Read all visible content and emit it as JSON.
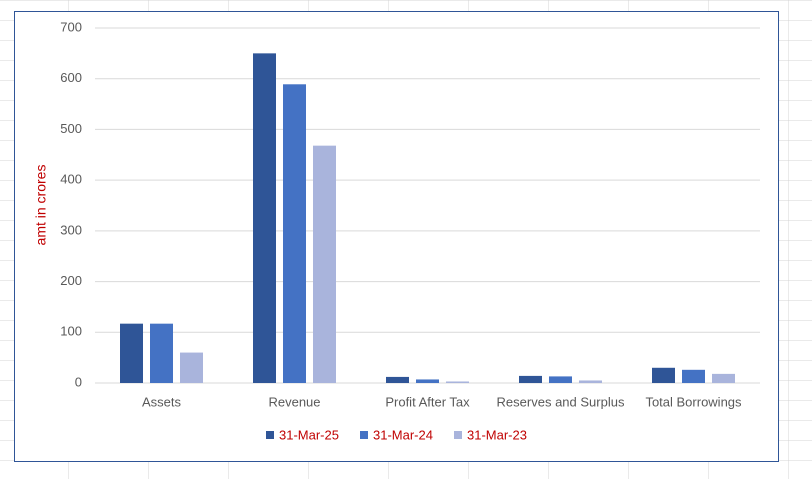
{
  "chart_data": {
    "type": "bar",
    "y_label": "amt in crores",
    "categories": [
      "Assets",
      "Revenue",
      "Profit After Tax",
      "Reserves and Surplus",
      "Total Borrowings"
    ],
    "series": [
      {
        "name": "31-Mar-25",
        "color": "#2f5597",
        "values": [
          117,
          650,
          12,
          14,
          30
        ]
      },
      {
        "name": "31-Mar-24",
        "color": "#4472c4",
        "values": [
          117,
          589,
          7,
          13,
          26
        ]
      },
      {
        "name": "31-Mar-23",
        "color": "#a9b4dc",
        "values": [
          60,
          468,
          3,
          5,
          18
        ]
      }
    ],
    "ylim": [
      0,
      700
    ],
    "yticks": [
      0,
      100,
      200,
      300,
      400,
      500,
      600,
      700
    ],
    "grid": true,
    "legend": "bottom"
  }
}
